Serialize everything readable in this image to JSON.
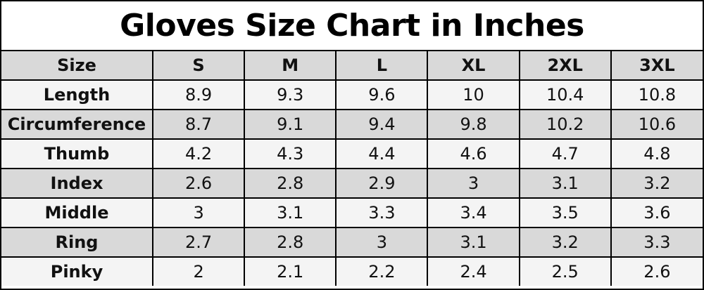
{
  "header": {
    "title": "Gloves Size Chart in Inches"
  },
  "table": {
    "columns": [
      "Size",
      "S",
      "M",
      "L",
      "XL",
      "2XL",
      "3XL"
    ],
    "rows": [
      [
        "Length",
        "8.9",
        "9.3",
        "9.6",
        "10",
        "10.4",
        "10.8"
      ],
      [
        "Circumference",
        "8.7",
        "9.1",
        "9.4",
        "9.8",
        "10.2",
        "10.6"
      ],
      [
        "Thumb",
        "4.2",
        "4.3",
        "4.4",
        "4.6",
        "4.7",
        "4.8"
      ],
      [
        "Index",
        "2.6",
        "2.8",
        "2.9",
        "3",
        "3.1",
        "3.2"
      ],
      [
        "Middle",
        "3",
        "3.1",
        "3.3",
        "3.4",
        "3.5",
        "3.6"
      ],
      [
        "Ring",
        "2.7",
        "2.8",
        "3",
        "3.1",
        "3.2",
        "3.3"
      ],
      [
        "Pinky",
        "2",
        "2.1",
        "2.2",
        "2.4",
        "2.5",
        "2.6"
      ]
    ]
  }
}
